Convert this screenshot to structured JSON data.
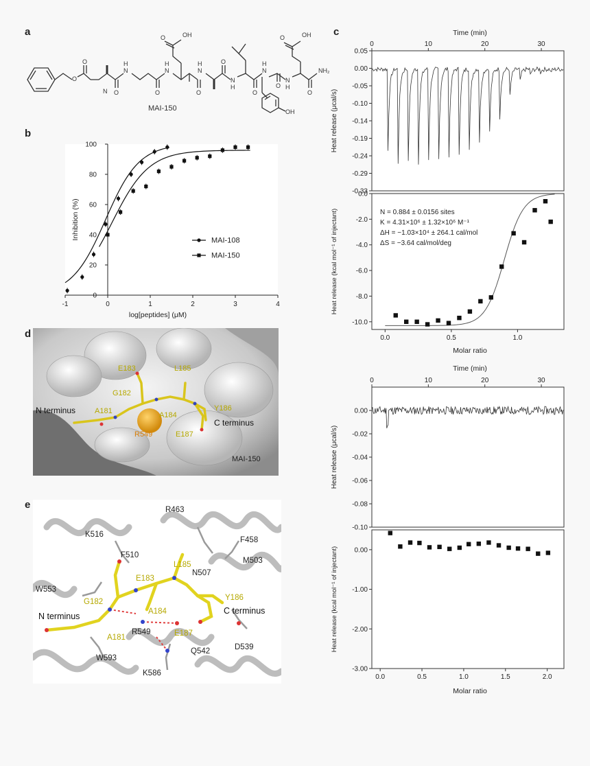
{
  "panels": {
    "a": "a",
    "b": "b",
    "c": "c",
    "d": "d",
    "e": "e"
  },
  "structure": {
    "caption": "MAI-150",
    "atoms": {
      "O": "O",
      "N": "N",
      "H": "H",
      "OH": "OH",
      "COOH": "OH",
      "NH2": "NH₂"
    }
  },
  "panel_b": {
    "chart_data": {
      "type": "scatter",
      "xlabel": "log[peptides] (μM)",
      "ylabel": "Inhibition (%)",
      "xlim": [
        -1,
        4
      ],
      "ylim": [
        0,
        100
      ],
      "xticks": [
        "-1",
        "0",
        "1",
        "2",
        "3",
        "4"
      ],
      "yticks": [
        "0",
        "20",
        "40",
        "60",
        "80",
        "100"
      ],
      "legend_position": "bottom-right",
      "series": [
        {
          "name": "MAI-108",
          "marker": "circle",
          "x": [
            -0.95,
            -0.6,
            -0.33,
            -0.05,
            0.25,
            0.55,
            0.8,
            1.1,
            1.4
          ],
          "y": [
            3,
            12,
            27,
            47,
            64,
            80,
            88,
            95,
            98
          ]
        },
        {
          "name": "MAI-150",
          "marker": "square",
          "x": [
            0.0,
            0.3,
            0.6,
            0.9,
            1.2,
            1.5,
            1.8,
            2.1,
            2.4,
            2.7,
            3.0,
            3.3
          ],
          "y": [
            40,
            55,
            69,
            72,
            82,
            85,
            89,
            91,
            92,
            96,
            98,
            98
          ]
        }
      ]
    }
  },
  "panel_c_top": {
    "raw": {
      "type": "line",
      "xlabel": "Time (min)",
      "ylabel": "Heat release (μcal/s)",
      "xlim": [
        0,
        34
      ],
      "xticks": [
        "0",
        "10",
        "20",
        "30"
      ],
      "ylim": [
        -0.33,
        0.05
      ],
      "yticks": [
        "0.05",
        "0.00",
        "-0.05",
        "-0.10",
        "-0.14",
        "-0.19",
        "-0.24",
        "-0.29",
        "-0.33"
      ],
      "injection_times_min": [
        2.8,
        4.6,
        6.4,
        8.2,
        10.0,
        11.8,
        13.6,
        15.4,
        17.2,
        19.0,
        20.8,
        22.6,
        24.4,
        26.2,
        28.0,
        29.8,
        31.6
      ],
      "peak_heat_ucal_s": [
        -0.27,
        -0.31,
        -0.31,
        -0.31,
        -0.3,
        -0.3,
        -0.29,
        -0.28,
        -0.26,
        -0.24,
        -0.21,
        -0.16,
        -0.09,
        -0.04,
        -0.02,
        -0.01,
        -0.01
      ]
    },
    "binding": {
      "type": "scatter",
      "xlabel": "Molar ratio",
      "ylabel": "Heat release (kcal mol⁻¹ of injectant)",
      "xlim": [
        -0.1,
        1.35
      ],
      "ylim": [
        -10.6,
        0
      ],
      "xticks": [
        "0.0",
        "0.5",
        "1.0"
      ],
      "yticks": [
        "0.0",
        "-2.0",
        "-4.0",
        "-6.0",
        "-8.0",
        "-10.0"
      ],
      "x": [
        0.08,
        0.16,
        0.24,
        0.32,
        0.4,
        0.48,
        0.56,
        0.64,
        0.72,
        0.8,
        0.88,
        0.97,
        1.05,
        1.13,
        1.21,
        1.25
      ],
      "y": [
        -9.5,
        -10.0,
        -10.0,
        -10.2,
        -9.9,
        -10.1,
        -9.7,
        -9.2,
        -8.4,
        -8.1,
        -5.7,
        -3.1,
        -3.8,
        -1.3,
        -0.6,
        -2.2
      ],
      "fit_params": {
        "N": 0.884,
        "K": 4310000,
        "dH": -10300,
        "dS": -3.64
      },
      "annotation": [
        "N = 0.884 ± 0.0156 sites",
        "K = 4.31×10⁶ ± 1.32×10⁶ M⁻¹",
        "ΔH = −1.03×10⁴ ± 264.1 cal/mol",
        "ΔS = −3.64 cal/mol/deg"
      ]
    }
  },
  "panel_c_bottom": {
    "raw": {
      "type": "line",
      "xlabel": "Time (min)",
      "ylabel": "Heat release (μcal/s)",
      "xlim": [
        0,
        34
      ],
      "xticks": [
        "0",
        "10",
        "20",
        "30"
      ],
      "ylim": [
        -0.1,
        0.02
      ],
      "yticks": [
        "0.00",
        "-0.02",
        "-0.04",
        "-0.06",
        "-0.08",
        "-0.10"
      ]
    },
    "binding": {
      "type": "scatter",
      "xlabel": "Molar ratio",
      "ylabel": "Heat release (kcal mol⁻¹ of injectant)",
      "xlim": [
        -0.1,
        2.2
      ],
      "ylim": [
        -3.0,
        0.5
      ],
      "xticks": [
        "0.0",
        "0.5",
        "1.0",
        "1.5",
        "2.0"
      ],
      "yticks": [
        "0.00",
        "-1.00",
        "-2.00",
        "-3.00"
      ],
      "x": [
        0.12,
        0.24,
        0.36,
        0.47,
        0.59,
        0.71,
        0.83,
        0.95,
        1.06,
        1.18,
        1.3,
        1.42,
        1.54,
        1.65,
        1.77,
        1.89,
        2.01
      ],
      "y": [
        0.42,
        0.08,
        0.18,
        0.17,
        0.06,
        0.07,
        0.02,
        0.05,
        0.14,
        0.15,
        0.18,
        0.11,
        0.05,
        0.03,
        0.02,
        -0.1,
        -0.08
      ]
    }
  },
  "panel_d": {
    "labels": [
      "E183",
      "L185",
      "G182",
      "N terminus",
      "A181",
      "A184",
      "Y186",
      "C terminus",
      "R549",
      "E187",
      "MAI-150"
    ]
  },
  "panel_e": {
    "labels": [
      "R463",
      "K516",
      "F458",
      "F510",
      "M503",
      "L185",
      "N507",
      "E183",
      "W553",
      "G182",
      "A184",
      "Y186",
      "C terminus",
      "N terminus",
      "R549",
      "E187",
      "A181",
      "Q542",
      "D539",
      "W593",
      "K586"
    ]
  }
}
